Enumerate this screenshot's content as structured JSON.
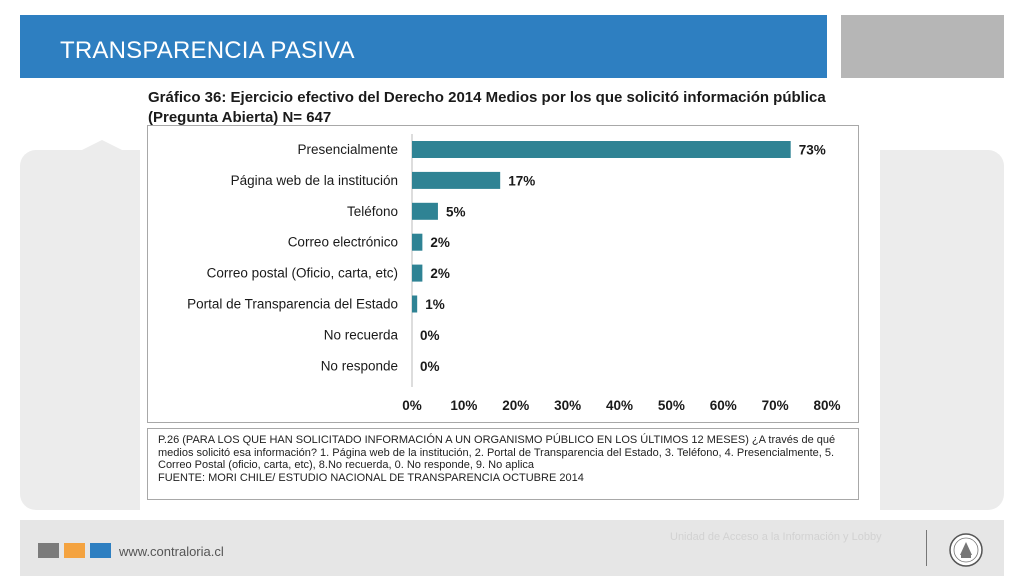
{
  "header": {
    "title": "TRANSPARENCIA PASIVA"
  },
  "chart_data": {
    "type": "bar",
    "orientation": "horizontal",
    "title": "Gráfico 36: Ejercicio efectivo del Derecho 2014 Medios por los que solicitó información pública (Pregunta Abierta)  N= 647",
    "categories": [
      "Presencialmente",
      "Página web de la institución",
      "Teléfono",
      "Correo electrónico",
      "Correo postal (Oficio, carta, etc)",
      "Portal de Transparencia del Estado",
      "No recuerda",
      "No responde"
    ],
    "values": [
      73,
      17,
      5,
      2,
      2,
      1,
      0,
      0
    ],
    "value_labels": [
      "73%",
      "17%",
      "5%",
      "2%",
      "2%",
      "1%",
      "0%",
      "0%"
    ],
    "xlim": [
      0,
      80
    ],
    "xticks": [
      0,
      10,
      20,
      30,
      40,
      50,
      60,
      70,
      80
    ],
    "xtick_labels": [
      "0%",
      "10%",
      "20%",
      "30%",
      "40%",
      "50%",
      "60%",
      "70%",
      "80%"
    ],
    "xlabel": "",
    "ylabel": "",
    "color": "#2f8394"
  },
  "note": {
    "question": "P.26 (PARA LOS QUE HAN SOLICITADO INFORMACIÓN A UN ORGANISMO PÚBLICO EN LOS ÚLTIMOS 12 MESES) ¿A través de qué medios solicitó esa información? 1. Página web de la institución, 2. Portal de Transparencia del Estado, 3. Teléfono, 4. Presencialmente, 5. Correo Postal (oficio, carta, etc), 8.No recuerda, 0. No responde, 9. No aplica",
    "source": "FUENTE: MORI CHILE/ ESTUDIO NACIONAL DE TRANSPARENCIA OCTUBRE 2014"
  },
  "footer": {
    "url": "www.contraloria.cl",
    "unit": "Unidad de Acceso a la Información y Lobby",
    "square_colors": [
      "#7b7b7b",
      "#f4a340",
      "#2e7fc1"
    ],
    "seal_icon": "contraloria-seal-icon"
  }
}
